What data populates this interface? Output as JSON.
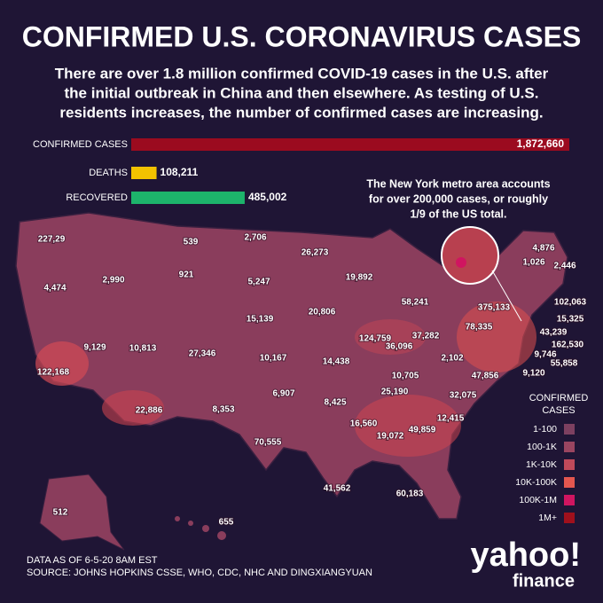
{
  "header": {
    "title": "CONFIRMED U.S. CORONAVIRUS CASES",
    "subtitle": [
      "There are over 1.8 million confirmed COVID-19 cases in the U.S. after",
      "the initial outbreak in China and then elsewhere. As testing of U.S.",
      "residents increases, the number of confirmed cases are increasing."
    ]
  },
  "totals": [
    {
      "label": "CONFIRMED CASES",
      "value": 1872660,
      "value_label": "1,872,660",
      "color": "#9b0b1f"
    },
    {
      "label": "DEATHS",
      "value": 108211,
      "value_label": "108,211",
      "color": "#f2c200"
    },
    {
      "label": "RECOVERED",
      "value": 485002,
      "value_label": "485,002",
      "color": "#1db36b"
    }
  ],
  "callout": [
    "The New York metro area accounts",
    "for over 200,000 cases, or roughly",
    "1/9 of the US total."
  ],
  "map": {
    "labels": [
      "227,29",
      "4,474",
      "539",
      "2,990",
      "921",
      "2,706",
      "5,247",
      "26,273",
      "19,892",
      "58,241",
      "4,876",
      "1,026",
      "2,446",
      "15,139",
      "20,806",
      "375,133",
      "102,063",
      "15,325",
      "43,239",
      "162,530",
      "9,746",
      "55,858",
      "9,120",
      "124,759",
      "37,282",
      "36,096",
      "78,335",
      "9,129",
      "10,813",
      "27,346",
      "10,167",
      "14,438",
      "2,102",
      "47,856",
      "122,168",
      "10,705",
      "25,190",
      "32,075",
      "6,907",
      "8,425",
      "22,886",
      "8,353",
      "16,560",
      "12,415",
      "19,072",
      "49,859",
      "70,555",
      "41,562",
      "60,183",
      "512",
      "655"
    ]
  },
  "legend": {
    "title": [
      "CONFIRMED",
      "CASES"
    ],
    "items": [
      {
        "label": "1-100",
        "color": "#7d4060"
      },
      {
        "label": "100-1K",
        "color": "#9a4560"
      },
      {
        "label": "1K-10K",
        "color": "#c04a5a"
      },
      {
        "label": "10K-100K",
        "color": "#e4574f"
      },
      {
        "label": "100K-1M",
        "color": "#d01560"
      },
      {
        "label": "1M+",
        "color": "#a0101c"
      }
    ]
  },
  "footer": {
    "note": "DATA AS OF 6-5-20 8AM EST",
    "source": "SOURCE:  JOHNS HOPKINS CSSE, WHO, CDC, NHC AND DINGXIANGYUAN"
  },
  "logo": {
    "brand": "yahoo!",
    "product": "finance"
  }
}
